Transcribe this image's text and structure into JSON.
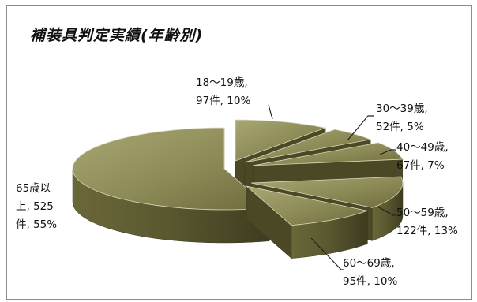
{
  "chart_data": {
    "type": "pie",
    "title": "補装具判定実績(年齢別)",
    "categories": [
      "18～19歳",
      "30～39歳",
      "40～49歳",
      "50～59歳",
      "60～69歳",
      "65歳以上"
    ],
    "values": [
      97,
      52,
      67,
      122,
      95,
      525
    ],
    "percents": [
      10,
      5,
      7,
      13,
      10,
      55
    ],
    "labels": [
      [
        "18～19歳,",
        "97件, 10%"
      ],
      [
        "30～39歳,",
        "52件, 5%"
      ],
      [
        "40～49歳,",
        "67件, 7%"
      ],
      [
        "50～59歳,",
        "122件, 13%"
      ],
      [
        "60～69歳,",
        "95件, 10%"
      ],
      [
        "65歳以",
        "上, 525",
        "件, 55%"
      ]
    ],
    "style": "3d-exploded",
    "colors": {
      "top": "#8c8a56",
      "side": "#59572f",
      "dark": "#3e3c1f",
      "light": "#a9a774"
    }
  }
}
